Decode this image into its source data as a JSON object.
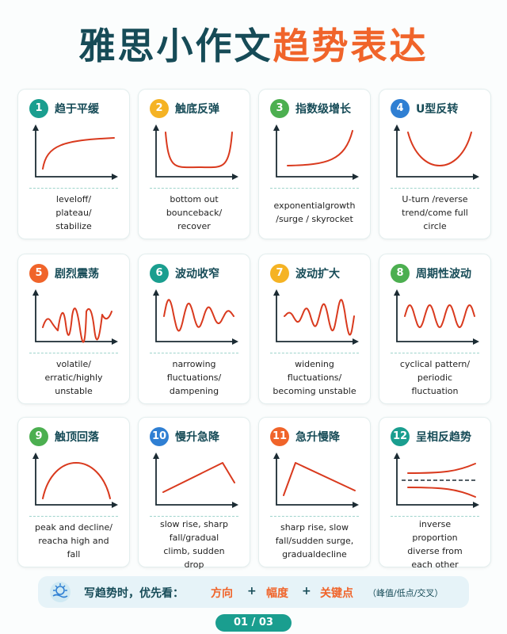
{
  "header": {
    "title_main": "雅思小作文",
    "title_accent": "趋势表达"
  },
  "cards": [
    {
      "number": "1",
      "title": "趋于平缓",
      "lines": [
        "leveloff/",
        "plateau/",
        "stabilize"
      ]
    },
    {
      "number": "2",
      "title": "触底反弹",
      "lines": [
        "bottom out",
        "bounceback/",
        "recover"
      ]
    },
    {
      "number": "3",
      "title": "指数级增长",
      "lines": [
        "exponentialgrowth",
        "/surge / skyrocket"
      ]
    },
    {
      "number": "4",
      "title": "U型反转",
      "lines": [
        "U-turn /reverse",
        "trend/come full",
        "circle"
      ]
    },
    {
      "number": "5",
      "title": "剧烈震荡",
      "lines": [
        "volatile/",
        "erratic/highly",
        "unstable"
      ]
    },
    {
      "number": "6",
      "title": "波动收窄",
      "lines": [
        "narrowing",
        "fluctuations/",
        "dampening"
      ]
    },
    {
      "number": "7",
      "title": "波动扩大",
      "lines": [
        "widening",
        "fluctuations/",
        "becoming unstable"
      ]
    },
    {
      "number": "8",
      "title": "周期性波动",
      "lines": [
        "cyclical pattern/",
        "periodic",
        "fluctuation"
      ]
    },
    {
      "number": "9",
      "title": "触顶回落",
      "lines": [
        "peak and decline/",
        "reacha high and",
        "fall"
      ]
    },
    {
      "number": "10",
      "title": "慢升急降",
      "lines": [
        "slow rise, sharp",
        "fall/gradual",
        "climb, sudden",
        "drop"
      ]
    },
    {
      "number": "11",
      "title": "急升慢降",
      "lines": [
        "sharp rise, slow",
        "fall/sudden surge,",
        "gradualdecline"
      ]
    },
    {
      "number": "12",
      "title": "呈相反趋势",
      "lines": [
        "inverse",
        "proportion",
        "diverse from",
        "each other"
      ]
    }
  ],
  "footer": {
    "lead": "写趋势时，优先看：",
    "items": [
      "方向",
      "幅度",
      "关键点"
    ],
    "separators": [
      "+",
      "+"
    ],
    "note": "（峰值/低点/交叉）"
  },
  "page": "01 / 03"
}
